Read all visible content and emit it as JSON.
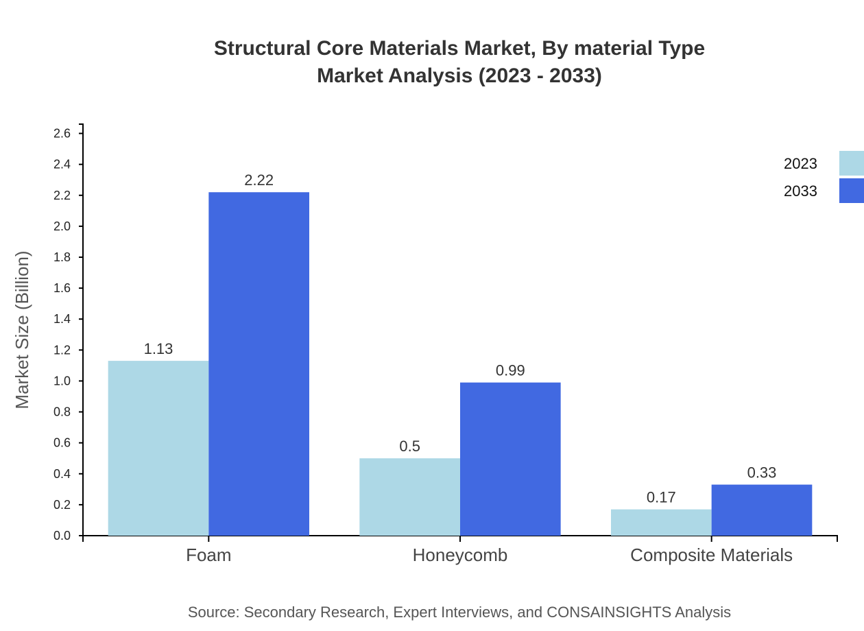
{
  "chart_data": {
    "type": "bar",
    "title": "Structural Core Materials Market, By material Type",
    "subtitle": "Market Analysis (2023 - 2033)",
    "xlabel": "",
    "ylabel": "Market Size (Billion)",
    "categories": [
      "Foam",
      "Honeycomb",
      "Composite Materials"
    ],
    "series": [
      {
        "name": "2023",
        "values": [
          1.13,
          0.5,
          0.17
        ],
        "color": "#add8e6"
      },
      {
        "name": "2033",
        "values": [
          2.22,
          0.99,
          0.33
        ],
        "color": "#4169e1"
      }
    ],
    "ylim": [
      0,
      2.66
    ],
    "yticks": [
      "0.0",
      "0.2",
      "0.4",
      "0.6",
      "0.8",
      "1.0",
      "1.2",
      "1.4",
      "1.6",
      "1.8",
      "2.0",
      "2.2",
      "2.4",
      "2.6"
    ],
    "grid": false,
    "legend": "top-right",
    "source": "Source: Secondary Research, Expert Interviews, and CONSAINSIGHTS Analysis"
  }
}
